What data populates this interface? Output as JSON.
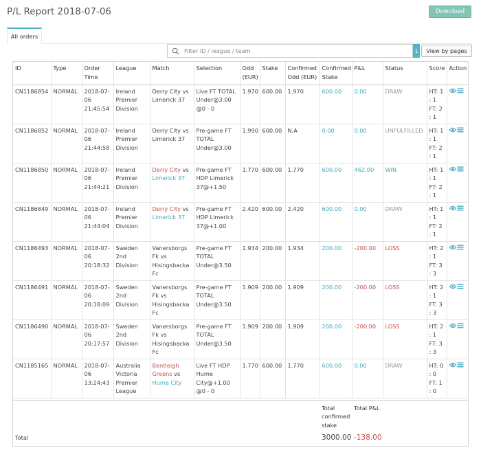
{
  "header": {
    "title": "P/L Report 2018-07-06",
    "download_label": "Download"
  },
  "tabs": {
    "all_orders": "All orders"
  },
  "filter": {
    "placeholder": "Filter ID / league / team",
    "page_count": "1",
    "view_by_pages_label": "View by pages"
  },
  "table": {
    "columns": {
      "id": "ID",
      "type": "Type",
      "order_time": "Order Time",
      "league": "League",
      "match": "Match",
      "selection": "Selection",
      "odd": "Odd (EUR)",
      "stake": "Stake",
      "confirmed_odd": "Confirmed Odd (EUR)",
      "confirmed_stake": "Confirmed Stake",
      "pl": "P&L",
      "status": "Status",
      "score": "Score",
      "action": "Action"
    },
    "rows": [
      {
        "id": "CN1186854",
        "type": "NORMAL",
        "order_time": "2018-07-06 21:45:54",
        "league": "Ireland Premier Division",
        "home": "Derry City",
        "vs": "vs",
        "away": "Limerick 37",
        "match_links": false,
        "selection": "Live FT TOTAL Under@3.00 @0 - 0",
        "odd": "1.970",
        "stake": "600.00",
        "confirmed_odd": "1.970",
        "confirmed_stake": "600.00",
        "pl": "0.00",
        "status": "DRAW",
        "score": "HT: 1 : 1 FT: 2 : 1"
      },
      {
        "id": "CN1186852",
        "type": "NORMAL",
        "order_time": "2018-07-06 21:44:58",
        "league": "Ireland Premier Division",
        "home": "Derry City",
        "vs": "vs",
        "away": "Limerick 37",
        "match_links": false,
        "selection": "Pre-game FT TOTAL Under@3.00",
        "odd": "1.990",
        "stake": "600.00",
        "confirmed_odd": "N.A",
        "confirmed_stake": "0.00",
        "pl": "0.00",
        "status": "UNFULFILLED",
        "score": "HT: 1 : 1 FT: 2 : 1"
      },
      {
        "id": "CN1186850",
        "type": "NORMAL",
        "order_time": "2018-07-06 21:44:21",
        "league": "Ireland Premier Division",
        "home": "Derry City",
        "vs": "vs",
        "away": "Limerick 37",
        "match_links": true,
        "selection": "Pre-game FT HDP Limerick 37@+1.50",
        "odd": "1.770",
        "stake": "600.00",
        "confirmed_odd": "1.770",
        "confirmed_stake": "600.00",
        "pl": "462.00",
        "status": "WIN",
        "score": "HT: 1 : 1 FT: 2 : 1"
      },
      {
        "id": "CN1186849",
        "type": "NORMAL",
        "order_time": "2018-07-06 21:44:04",
        "league": "Ireland Premier Division",
        "home": "Derry City",
        "vs": "vs",
        "away": "Limerick 37",
        "match_links": true,
        "selection": "Pre-game FT HDP Limerick 37@+1.00",
        "odd": "2.420",
        "stake": "600.00",
        "confirmed_odd": "2.420",
        "confirmed_stake": "600.00",
        "pl": "0.00",
        "status": "DRAW",
        "score": "HT: 1 : 1 FT: 2 : 1"
      },
      {
        "id": "CN1186493",
        "type": "NORMAL",
        "order_time": "2018-07-06 20:18:32",
        "league": "Sweden 2nd Division",
        "home": "Vanersborgs Fk",
        "vs": "vs",
        "away": "Hisingsbacka Fc",
        "match_links": false,
        "selection": "Pre-game FT TOTAL Under@3.50",
        "odd": "1.934",
        "stake": "200.00",
        "confirmed_odd": "1.934",
        "confirmed_stake": "200.00",
        "pl": "-200.00",
        "status": "LOSS",
        "score": "HT: 2 : 1 FT: 3 : 3"
      },
      {
        "id": "CN1186491",
        "type": "NORMAL",
        "order_time": "2018-07-06 20:18:09",
        "league": "Sweden 2nd Division",
        "home": "Vanersborgs Fk",
        "vs": "vs",
        "away": "Hisingsbacka Fc",
        "match_links": false,
        "selection": "Pre-game FT TOTAL Under@3.50",
        "odd": "1.909",
        "stake": "200.00",
        "confirmed_odd": "1.909",
        "confirmed_stake": "200.00",
        "pl": "-200.00",
        "status": "LOSS",
        "score": "HT: 2 : 1 FT: 3 : 3"
      },
      {
        "id": "CN1186490",
        "type": "NORMAL",
        "order_time": "2018-07-06 20:17:57",
        "league": "Sweden 2nd Division",
        "home": "Vanersborgs Fk",
        "vs": "vs",
        "away": "Hisingsbacka Fc",
        "match_links": false,
        "selection": "Pre-game FT TOTAL Under@3.50",
        "odd": "1.909",
        "stake": "200.00",
        "confirmed_odd": "1.909",
        "confirmed_stake": "200.00",
        "pl": "-200.00",
        "status": "LOSS",
        "score": "HT: 2 : 1 FT: 3 : 3"
      },
      {
        "id": "CN1185165",
        "type": "NORMAL",
        "order_time": "2018-07-06 13:24:43",
        "league": "Australia Victoria Premier League",
        "home": "Bentleigh Greens",
        "vs": "vs",
        "away": "Hume City",
        "match_links": true,
        "selection": "Live FT HDP Hume City@+1.00 @0 - 0",
        "odd": "1.770",
        "stake": "600.00",
        "confirmed_odd": "1.770",
        "confirmed_stake": "600.00",
        "pl": "0.00",
        "status": "DRAW",
        "score": "HT: 0 : 0 FT: 1 : 0"
      }
    ],
    "totals": {
      "label": "Total",
      "confirmed_stake_label": "Total confirmed stake",
      "pl_label": "Total P&L",
      "confirmed_stake": "3000.00",
      "pl": "-138.00"
    }
  },
  "icons": {
    "view": "eye-icon",
    "details": "list-icon"
  },
  "colors": {
    "accent": "#4bb8c8",
    "download_bg": "#7fc6b5",
    "home_link": "#c0544c",
    "away_link": "#3fa9c1",
    "negative": "#c0504d",
    "win": "#4caa6c"
  }
}
